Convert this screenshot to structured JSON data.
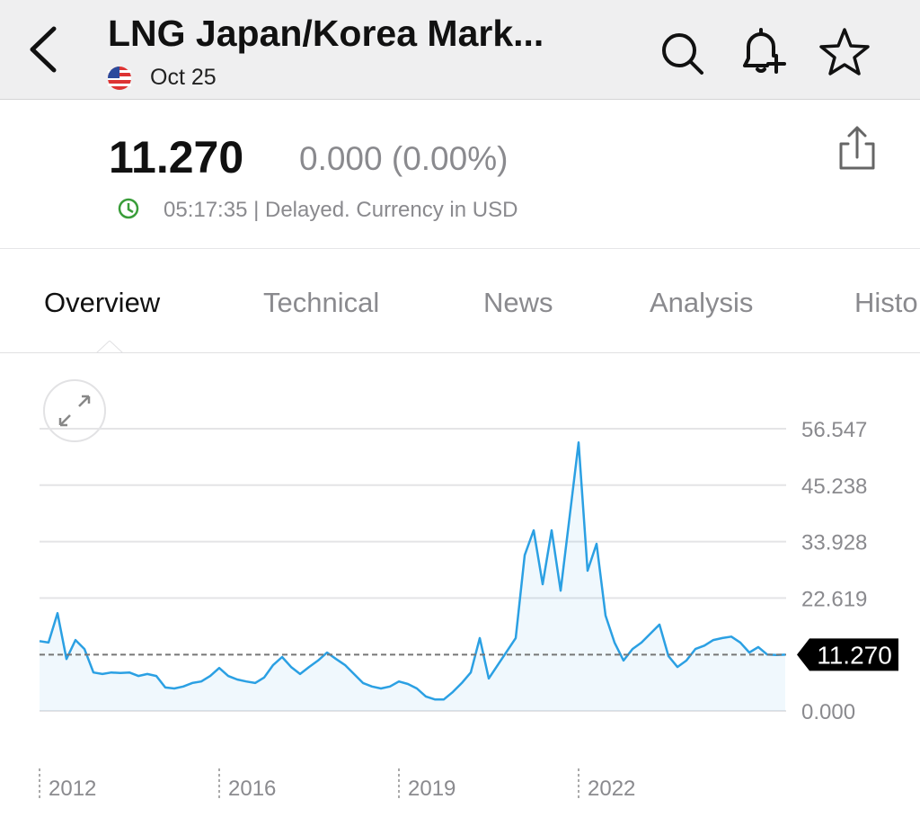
{
  "header": {
    "title": "LNG Japan/Korea Mark...",
    "date": "Oct 25"
  },
  "quote": {
    "price": "11.270",
    "change": "0.000 (0.00%)",
    "status": "05:17:35 | Delayed. Currency in USD"
  },
  "tabs": [
    "Overview",
    "Technical",
    "News",
    "Analysis",
    "Histo"
  ],
  "chart_data": {
    "type": "line",
    "categories": [
      "2012",
      null,
      null,
      null,
      null,
      null,
      null,
      null,
      null,
      null,
      null,
      null,
      null,
      null,
      null,
      null,
      null,
      null,
      null,
      null,
      "2016",
      null,
      null,
      null,
      null,
      null,
      null,
      null,
      null,
      null,
      null,
      null,
      null,
      null,
      null,
      null,
      null,
      null,
      null,
      null,
      "2019",
      null,
      null,
      null,
      null,
      null,
      null,
      null,
      null,
      null,
      null,
      null,
      null,
      null,
      null,
      null,
      null,
      null,
      null,
      null,
      "2022",
      null,
      null,
      null,
      null,
      null,
      null,
      null,
      null,
      null,
      null,
      null,
      null,
      null,
      null,
      null,
      null,
      null,
      null,
      null,
      null,
      null,
      null,
      null
    ],
    "series": [
      {
        "name": "LNG Japan/Korea Marker",
        "color": "#2ba0e3",
        "values": [
          14.0,
          13.7,
          19.6,
          10.4,
          14.2,
          12.4,
          7.7,
          7.4,
          7.7,
          7.6,
          7.7,
          7.0,
          7.4,
          7.0,
          4.7,
          4.5,
          4.9,
          5.6,
          5.9,
          7.0,
          8.6,
          7.0,
          6.3,
          5.9,
          5.6,
          6.7,
          9.2,
          10.8,
          8.8,
          7.4,
          8.8,
          10.1,
          11.7,
          10.4,
          9.2,
          7.4,
          5.6,
          4.9,
          4.5,
          4.9,
          5.9,
          5.4,
          4.5,
          2.9,
          2.3,
          2.3,
          3.8,
          5.6,
          7.7,
          14.6,
          6.5,
          9.2,
          11.9,
          14.6,
          31.2,
          36.2,
          25.4,
          36.2,
          24.1,
          38.9,
          53.8,
          28.1,
          33.5,
          19.1,
          13.7,
          10.1,
          12.4,
          13.7,
          15.5,
          17.3,
          11.0,
          8.8,
          10.1,
          12.4,
          13.1,
          14.2,
          14.6,
          14.9,
          13.7,
          11.7,
          12.8,
          11.3,
          11.2,
          11.27
        ]
      }
    ],
    "ylim": [
      0,
      56.547
    ],
    "yticks": [
      {
        "value": 0,
        "label": "0.000"
      },
      {
        "value": 22.619,
        "label": "22.619"
      },
      {
        "value": 33.928,
        "label": "33.928"
      },
      {
        "value": 45.238,
        "label": "45.238"
      },
      {
        "value": 56.547,
        "label": "56.547"
      }
    ],
    "reference": {
      "value": 11.27,
      "label": "11.270"
    },
    "grid": true
  }
}
